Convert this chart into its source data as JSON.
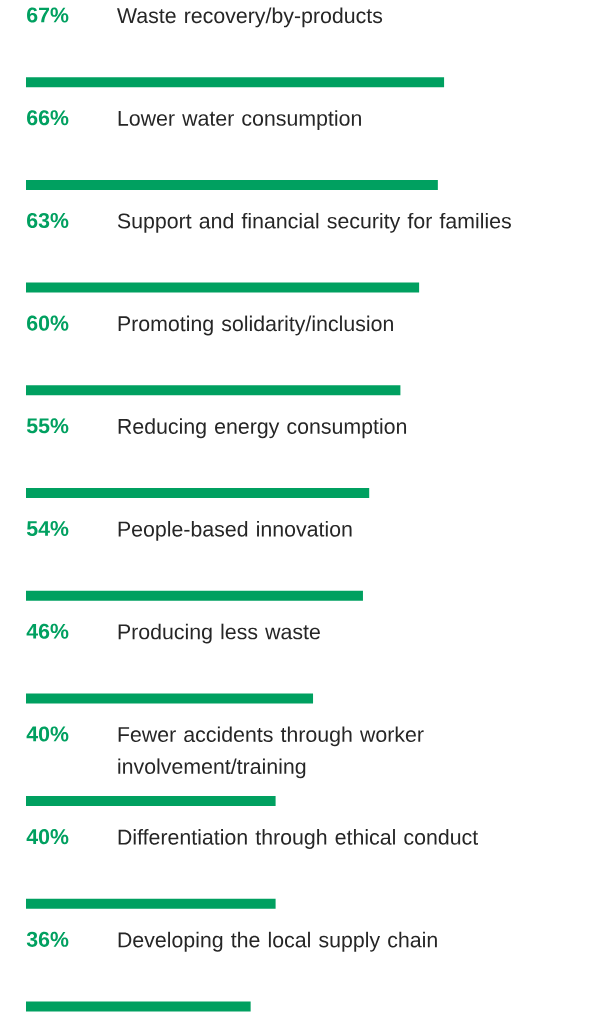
{
  "chart_data": {
    "type": "bar",
    "orientation": "horizontal",
    "color": "#00a060",
    "categories": [
      "Waste recovery/by-products",
      "Lower water consumption",
      "Support and financial security for families",
      "Promoting solidarity/inclusion",
      "Reducing energy consumption",
      "People-based innovation",
      "Producing less waste",
      "Fewer accidents through worker involvement/training",
      "Differentiation through ethical conduct",
      "Developing the local supply chain"
    ],
    "values": [
      67,
      66,
      63,
      60,
      55,
      54,
      46,
      40,
      40,
      36
    ],
    "value_labels": [
      "67%",
      "66%",
      "63%",
      "60%",
      "55%",
      "54%",
      "46%",
      "40%",
      "40%",
      "36%"
    ]
  }
}
